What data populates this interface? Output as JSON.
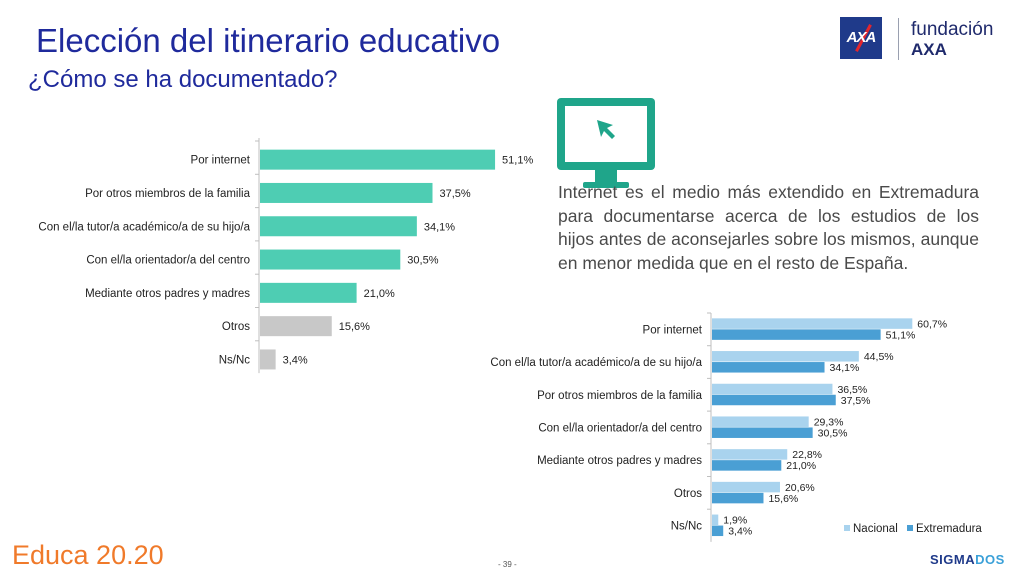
{
  "header": {
    "title": "Elección del itinerario educativo",
    "subtitle": "¿Cómo se ha documentado?"
  },
  "logo": {
    "mark": "AXA",
    "line1": "fundación",
    "line2": "AXA"
  },
  "body_text": "Internet es el medio más extendido en Extremadura para documentarse acerca de los estudios de los hijos antes de aconsejarles sobre los mismos, aunque en menor medida que en el resto de España.",
  "footer": {
    "brand": "Educa 20.20",
    "page": "- 39 -",
    "sigma_a": "SIGMA",
    "sigma_b": "DOS"
  },
  "colors": {
    "teal": "#4ecdb3",
    "gray": "#c8c8c8",
    "nacional": "#a9d3ee",
    "extremadura": "#4a9fd4",
    "title": "#1f2a9c"
  },
  "chart_data": [
    {
      "type": "bar",
      "orientation": "horizontal",
      "categories": [
        "Por internet",
        "Por otros miembros de la familia",
        "Con el/la tutor/a académico/a de su hijo/a",
        "Con el/la orientador/a del centro",
        "Mediante otros padres y madres",
        "Otros",
        "Ns/Nc"
      ],
      "values": [
        51.1,
        37.5,
        34.1,
        30.5,
        21.0,
        15.6,
        3.4
      ],
      "labels": [
        "51,1%",
        "37,5%",
        "34,1%",
        "30,5%",
        "21,0%",
        "15,6%",
        "3,4%"
      ],
      "highlight": [
        "teal",
        "teal",
        "teal",
        "teal",
        "teal",
        "gray",
        "gray"
      ]
    },
    {
      "type": "bar",
      "orientation": "horizontal",
      "categories": [
        "Por internet",
        "Con el/la tutor/a académico/a de su hijo/a",
        "Por otros miembros de la familia",
        "Con el/la orientador/a del centro",
        "Mediante otros padres y madres",
        "Otros",
        "Ns/Nc"
      ],
      "series": [
        {
          "name": "Nacional",
          "values": [
            60.7,
            44.5,
            36.5,
            29.3,
            22.8,
            20.6,
            1.9
          ],
          "labels": [
            "60,7%",
            "44,5%",
            "36,5%",
            "29,3%",
            "22,8%",
            "20,6%",
            "1,9%"
          ]
        },
        {
          "name": "Extremadura",
          "values": [
            51.1,
            34.1,
            37.5,
            30.5,
            21.0,
            15.6,
            3.4
          ],
          "labels": [
            "51,1%",
            "34,1%",
            "37,5%",
            "30,5%",
            "21,0%",
            "15,6%",
            "3,4%"
          ]
        }
      ],
      "legend": "bottom-right"
    }
  ]
}
